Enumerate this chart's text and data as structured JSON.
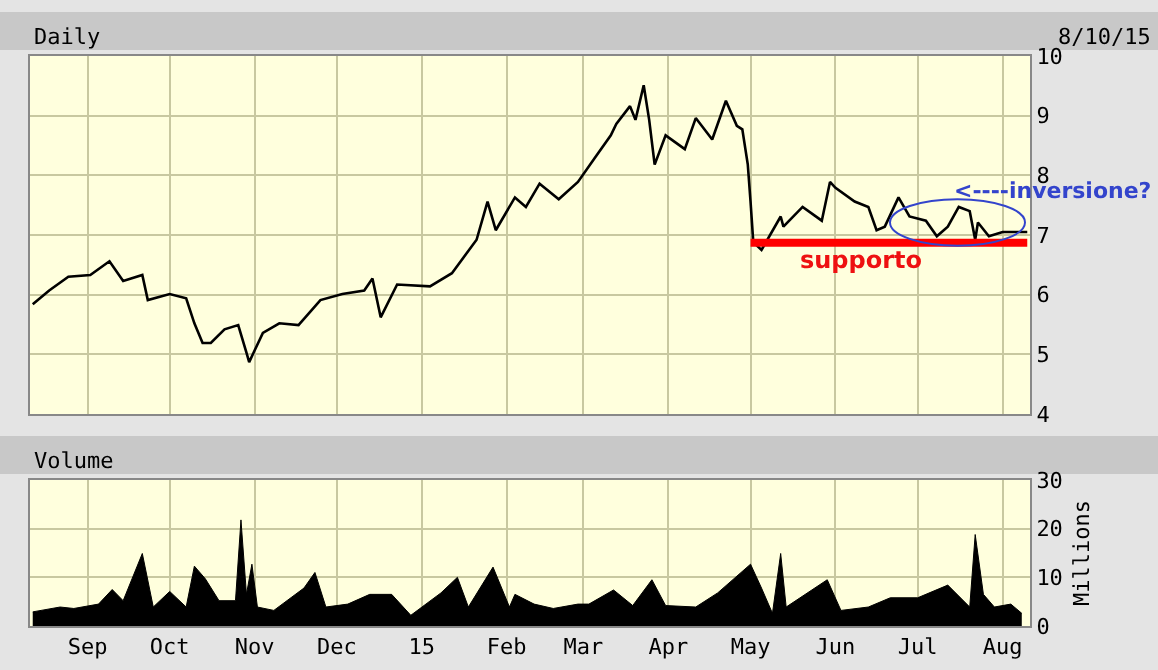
{
  "chart_data": [
    {
      "type": "line",
      "title": "Daily",
      "subtitle": "8/10/15",
      "series": [
        {
          "color": "#000000",
          "x": [
            "2014-08-12",
            "2014-08-18",
            "2014-08-25",
            "2014-09-02",
            "2014-09-09",
            "2014-09-14",
            "2014-09-21",
            "2014-09-23",
            "2014-10-01",
            "2014-10-07",
            "2014-10-10",
            "2014-10-13",
            "2014-10-16",
            "2014-10-21",
            "2014-10-26",
            "2014-10-29",
            "2014-10-30",
            "2014-11-04",
            "2014-11-10",
            "2014-11-17",
            "2014-11-25",
            "2014-12-03",
            "2014-12-11",
            "2014-12-14",
            "2014-12-17",
            "2014-12-23",
            "2015-01-04",
            "2015-01-12",
            "2015-01-21",
            "2015-01-25",
            "2015-01-28",
            "2015-02-04",
            "2015-02-08",
            "2015-02-13",
            "2015-02-20",
            "2015-02-27",
            "2015-03-05",
            "2015-03-11",
            "2015-03-13",
            "2015-03-18",
            "2015-03-20",
            "2015-03-23",
            "2015-03-25",
            "2015-03-27",
            "2015-03-31",
            "2015-04-07",
            "2015-04-11",
            "2015-04-17",
            "2015-04-22",
            "2015-04-26",
            "2015-04-28",
            "2015-04-30",
            "2015-05-01",
            "2015-05-02",
            "2015-05-05",
            "2015-05-12",
            "2015-05-13",
            "2015-05-20",
            "2015-05-27",
            "2015-05-30",
            "2015-06-01",
            "2015-06-08",
            "2015-06-13",
            "2015-06-16",
            "2015-06-19",
            "2015-06-24",
            "2015-06-28",
            "2015-07-04",
            "2015-07-08",
            "2015-07-12",
            "2015-07-16",
            "2015-07-20",
            "2015-07-22",
            "2015-07-23",
            "2015-07-27",
            "2015-08-01",
            "2015-08-10"
          ],
          "values": [
            5.84,
            6.07,
            6.3,
            6.33,
            6.56,
            6.23,
            6.33,
            5.91,
            6.01,
            5.94,
            5.52,
            5.19,
            5.19,
            5.42,
            5.49,
            5.03,
            4.87,
            5.36,
            5.52,
            5.49,
            5.91,
            6.01,
            6.07,
            6.27,
            5.62,
            6.17,
            6.14,
            6.36,
            6.92,
            7.56,
            7.08,
            7.63,
            7.47,
            7.86,
            7.6,
            7.89,
            8.28,
            8.67,
            8.86,
            9.16,
            8.93,
            9.51,
            8.93,
            8.18,
            8.67,
            8.44,
            8.96,
            8.6,
            9.25,
            8.83,
            8.77,
            8.18,
            7.56,
            6.88,
            6.75,
            7.31,
            7.14,
            7.47,
            7.24,
            7.89,
            7.79,
            7.56,
            7.47,
            7.08,
            7.14,
            7.63,
            7.31,
            7.24,
            6.98,
            7.14,
            7.47,
            7.4,
            6.92,
            7.21,
            6.98,
            7.05,
            7.05
          ]
        },
        {
          "type": "line",
          "color": "#ff0000",
          "x": [
            "2015-05-01",
            "2015-08-10"
          ],
          "values": [
            6.87,
            6.87
          ]
        }
      ],
      "annotations": [
        "supporto",
        "<----inversione?"
      ],
      "xlim": [
        "2014-08-11",
        "2015-08-11"
      ],
      "xticks": [
        {
          "value": "2014-09-01",
          "label": null
        },
        {
          "value": "2014-10-01",
          "label": null
        },
        {
          "value": "2014-11-01",
          "label": null
        },
        {
          "value": "2014-12-01",
          "label": null
        },
        {
          "value": "2015-01-01",
          "label": null
        },
        {
          "value": "2015-02-01",
          "label": null
        },
        {
          "value": "2015-03-01",
          "label": null
        },
        {
          "value": "2015-04-01",
          "label": null
        },
        {
          "value": "2015-05-01",
          "label": null
        },
        {
          "value": "2015-06-01",
          "label": null
        },
        {
          "value": "2015-07-01",
          "label": null
        },
        {
          "value": "2015-08-01",
          "label": null
        }
      ],
      "ylim": [
        4,
        10
      ],
      "yticks": [
        4,
        5,
        6,
        7,
        8,
        9,
        10
      ],
      "tick_labels": "y",
      "grid": true
    },
    {
      "type": "area",
      "title": "Volume",
      "ylabel": "Millions",
      "series": [
        {
          "color": "#000000",
          "x": [
            "2014-08-12",
            "2014-08-22",
            "2014-08-27",
            "2014-09-05",
            "2014-09-10",
            "2014-09-14",
            "2014-09-21",
            "2014-09-25",
            "2014-10-01",
            "2014-10-07",
            "2014-10-10",
            "2014-10-14",
            "2014-10-19",
            "2014-10-25",
            "2014-10-27",
            "2014-10-29",
            "2014-10-31",
            "2014-11-02",
            "2014-11-08",
            "2014-11-19",
            "2014-11-23",
            "2014-11-27",
            "2014-12-05",
            "2014-12-13",
            "2014-12-21",
            "2014-12-28",
            "2015-01-08",
            "2015-01-14",
            "2015-01-18",
            "2015-01-27",
            "2015-02-02",
            "2015-02-04",
            "2015-02-11",
            "2015-02-18",
            "2015-02-27",
            "2015-03-03",
            "2015-03-12",
            "2015-03-19",
            "2015-03-26",
            "2015-03-31",
            "2015-04-11",
            "2015-04-19",
            "2015-05-01",
            "2015-05-05",
            "2015-05-09",
            "2015-05-12",
            "2015-05-14",
            "2015-05-29",
            "2015-06-03",
            "2015-06-13",
            "2015-06-21",
            "2015-07-01",
            "2015-07-12",
            "2015-07-20",
            "2015-07-22",
            "2015-07-25",
            "2015-07-29",
            "2015-08-04",
            "2015-08-08"
          ],
          "values": [
            2.9,
            3.9,
            3.6,
            4.5,
            7.5,
            5.2,
            14.9,
            3.9,
            7.1,
            3.9,
            12.3,
            9.7,
            5.2,
            5.2,
            21.8,
            6.5,
            12.7,
            3.9,
            3.2,
            7.8,
            11,
            3.9,
            4.5,
            6.5,
            6.5,
            2.2,
            6.8,
            10,
            3.9,
            12.1,
            3.9,
            6.5,
            4.5,
            3.6,
            4.5,
            4.5,
            7.4,
            4.2,
            9.5,
            4.2,
            3.9,
            6.8,
            12.7,
            7.8,
            2.6,
            14.9,
            3.9,
            9.5,
            3.2,
            3.9,
            5.8,
            5.8,
            8.4,
            3.9,
            18.8,
            6.5,
            3.9,
            4.5,
            2.6
          ]
        }
      ],
      "xlim": [
        "2014-08-11",
        "2015-08-11"
      ],
      "xticks": [
        {
          "value": "2014-09-01",
          "label": "Sep"
        },
        {
          "value": "2014-10-01",
          "label": "Oct"
        },
        {
          "value": "2014-11-01",
          "label": "Nov"
        },
        {
          "value": "2014-12-01",
          "label": "Dec"
        },
        {
          "value": "2015-01-01",
          "label": "15"
        },
        {
          "value": "2015-02-01",
          "label": "Feb"
        },
        {
          "value": "2015-03-01",
          "label": "Mar"
        },
        {
          "value": "2015-04-01",
          "label": "Apr"
        },
        {
          "value": "2015-05-01",
          "label": "May"
        },
        {
          "value": "2015-06-01",
          "label": "Jun"
        },
        {
          "value": "2015-07-01",
          "label": "Jul"
        },
        {
          "value": "2015-08-01",
          "label": "Aug"
        }
      ],
      "ylim": [
        0,
        30
      ],
      "yticks": [
        0,
        10,
        20,
        30
      ],
      "grid": true
    }
  ]
}
